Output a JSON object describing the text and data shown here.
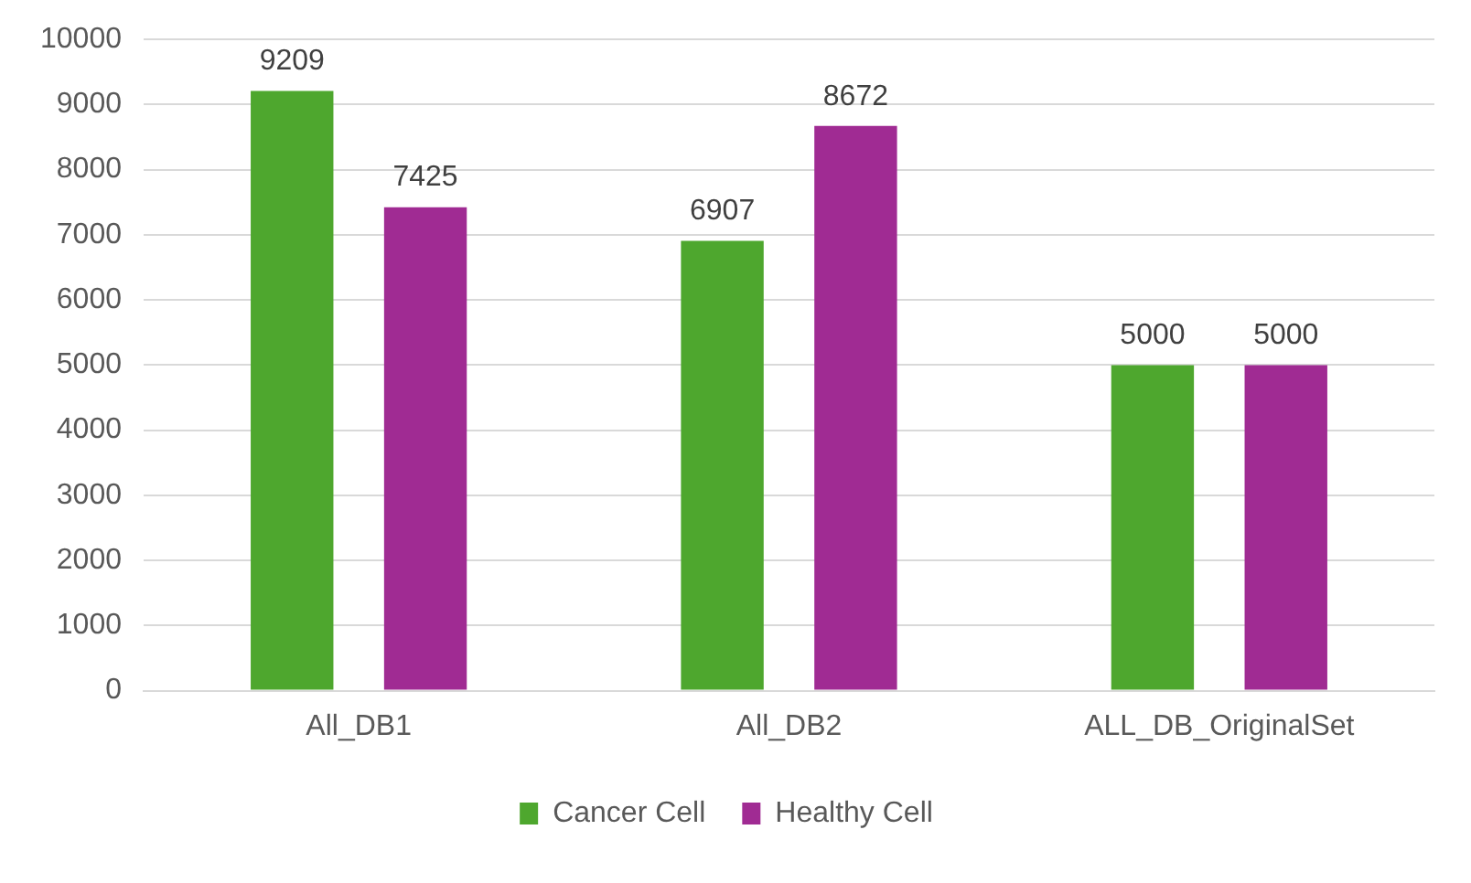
{
  "chart_data": {
    "type": "bar",
    "categories": [
      "All_DB1",
      "All_DB2",
      "ALL_DB_OriginalSet"
    ],
    "series": [
      {
        "name": "Cancer Cell",
        "color": "#4ea72e",
        "values": [
          9209,
          6907,
          5000
        ]
      },
      {
        "name": "Healthy Cell",
        "color": "#a02b93",
        "values": [
          7425,
          8672,
          5000
        ]
      }
    ],
    "ylim": [
      0,
      10000
    ],
    "yticks": [
      0,
      1000,
      2000,
      3000,
      4000,
      5000,
      6000,
      7000,
      8000,
      9000,
      10000
    ],
    "grid": "y",
    "legend": "bottom",
    "data_labels": true
  }
}
